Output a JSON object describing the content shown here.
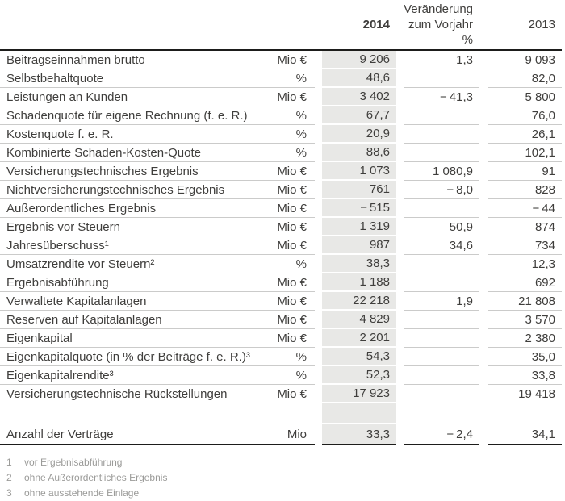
{
  "colors": {
    "text": "#3f3e3c",
    "muted": "#9b9b99",
    "cell_gray": "#e8e8e6",
    "separator": "#cbcbca",
    "heavy_line": "#1d1d1b",
    "background": "#ffffff"
  },
  "header": {
    "y2014": "2014",
    "change_line1": "Veränderung",
    "change_line2": "zum Vorjahr",
    "change_line3": "%",
    "y2013": "2013"
  },
  "rows": [
    {
      "label": "Beitragseinnahmen brutto",
      "unit": "Mio €",
      "y2014": "9 206",
      "change": "1,3",
      "y2013": "9 093"
    },
    {
      "label": "Selbstbehaltquote",
      "unit": "%",
      "y2014": "48,6",
      "change": "",
      "y2013": "82,0"
    },
    {
      "label": "Leistungen an Kunden",
      "unit": "Mio €",
      "y2014": "3 402",
      "change": "− 41,3",
      "y2013": "5 800"
    },
    {
      "label": "Schadenquote für eigene Rechnung (f. e. R.)",
      "unit": "%",
      "y2014": "67,7",
      "change": "",
      "y2013": "76,0"
    },
    {
      "label": "Kostenquote f. e. R.",
      "unit": "%",
      "y2014": "20,9",
      "change": "",
      "y2013": "26,1"
    },
    {
      "label": "Kombinierte Schaden-Kosten-Quote",
      "unit": "%",
      "y2014": "88,6",
      "change": "",
      "y2013": "102,1"
    },
    {
      "label": "Versicherungstechnisches Ergebnis",
      "unit": "Mio €",
      "y2014": "1 073",
      "change": "1 080,9",
      "y2013": "91"
    },
    {
      "label": "Nichtversicherungstechnisches Ergebnis",
      "unit": "Mio €",
      "y2014": "761",
      "change": "− 8,0",
      "y2013": "828"
    },
    {
      "label": "Außerordentliches Ergebnis",
      "unit": "Mio €",
      "y2014": "− 515",
      "change": "",
      "y2013": "− 44"
    },
    {
      "label": "Ergebnis vor Steuern",
      "unit": "Mio €",
      "y2014": "1 319",
      "change": "50,9",
      "y2013": "874"
    },
    {
      "label": "Jahresüberschuss¹",
      "unit": "Mio €",
      "y2014": "987",
      "change": "34,6",
      "y2013": "734"
    },
    {
      "label": "Umsatzrendite vor Steuern²",
      "unit": "%",
      "y2014": "38,3",
      "change": "",
      "y2013": "12,3"
    },
    {
      "label": "Ergebnisabführung",
      "unit": "Mio €",
      "y2014": "1 188",
      "change": "",
      "y2013": "692"
    },
    {
      "label": "Verwaltete Kapitalanlagen",
      "unit": "Mio €",
      "y2014": "22 218",
      "change": "1,9",
      "y2013": "21 808"
    },
    {
      "label": "Reserven auf Kapitalanlagen",
      "unit": "Mio €",
      "y2014": "4 829",
      "change": "",
      "y2013": "3 570"
    },
    {
      "label": "Eigenkapital",
      "unit": "Mio €",
      "y2014": "2 201",
      "change": "",
      "y2013": "2 380"
    },
    {
      "label": "Eigenkapitalquote (in % der Beiträge f. e. R.)³",
      "unit": "%",
      "y2014": "54,3",
      "change": "",
      "y2013": "35,0"
    },
    {
      "label": "Eigenkapitalrendite³",
      "unit": "%",
      "y2014": "52,3",
      "change": "",
      "y2013": "33,8"
    },
    {
      "label": "Versicherungstechnische Rückstellungen",
      "unit": "Mio €",
      "y2014": "17 923",
      "change": "",
      "y2013": "19 418"
    }
  ],
  "total_row": {
    "label": "Anzahl der Verträge",
    "unit": "Mio",
    "y2014": "33,3",
    "change": "− 2,4",
    "y2013": "34,1"
  },
  "footnotes": [
    {
      "num": "1",
      "text": "vor Ergebnisabführung"
    },
    {
      "num": "2",
      "text": "ohne Außerordentliches Ergebnis"
    },
    {
      "num": "3",
      "text": "ohne ausstehende Einlage"
    }
  ]
}
